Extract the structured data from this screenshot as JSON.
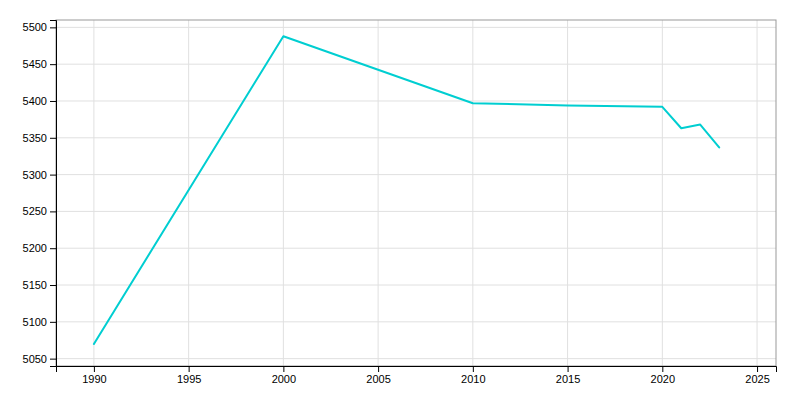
{
  "chart_data": {
    "type": "line",
    "x": [
      1990,
      2000,
      2010,
      2015,
      2020,
      2021,
      2022,
      2023
    ],
    "values": [
      5070,
      5488,
      5397,
      5394,
      5392,
      5363,
      5368,
      5337
    ],
    "color": "#00CED1",
    "xlim": [
      1988,
      2026
    ],
    "ylim": [
      5040,
      5510
    ],
    "xticks": [
      1990,
      1995,
      2000,
      2005,
      2010,
      2015,
      2020,
      2025
    ],
    "yticks": [
      5050,
      5100,
      5150,
      5200,
      5250,
      5300,
      5350,
      5400,
      5450,
      5500
    ],
    "grid": true
  }
}
